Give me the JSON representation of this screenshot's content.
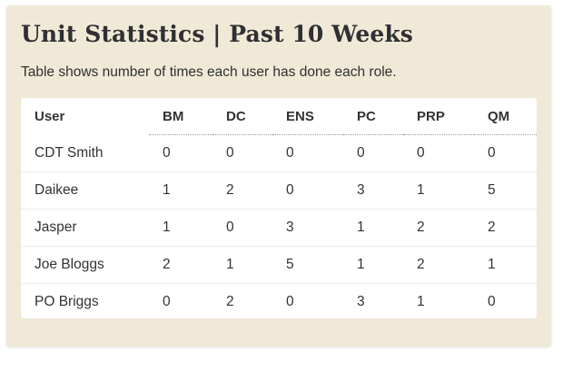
{
  "panel": {
    "title": "Unit Statistics | Past 10 Weeks",
    "subtitle": "Table shows number of times each user has done each role."
  },
  "table": {
    "headers": [
      "User",
      "BM",
      "DC",
      "ENS",
      "PC",
      "PRP",
      "QM"
    ],
    "rows": [
      {
        "user": "CDT Smith",
        "values": [
          "0",
          "0",
          "0",
          "0",
          "0",
          "0"
        ]
      },
      {
        "user": "Daikee",
        "values": [
          "1",
          "2",
          "0",
          "3",
          "1",
          "5"
        ]
      },
      {
        "user": "Jasper",
        "values": [
          "1",
          "0",
          "3",
          "1",
          "2",
          "2"
        ]
      },
      {
        "user": "Joe Bloggs",
        "values": [
          "2",
          "1",
          "5",
          "1",
          "2",
          "1"
        ]
      },
      {
        "user": "PO Briggs",
        "values": [
          "0",
          "2",
          "0",
          "3",
          "1",
          "0"
        ]
      }
    ]
  },
  "colors": {
    "panel_background": "#f1e9d7",
    "card_background": "#ffffff",
    "text": "#333333"
  }
}
